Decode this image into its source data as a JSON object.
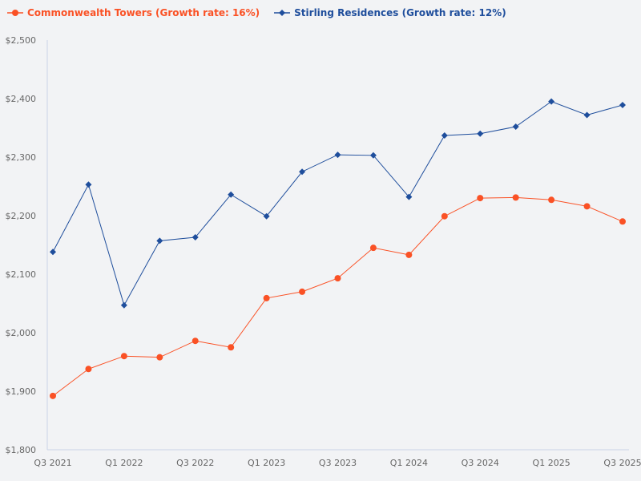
{
  "legend": {
    "items": [
      {
        "label": "Commonwealth Towers (Growth rate: 16%)",
        "color": "#fa5125",
        "marker": "circle"
      },
      {
        "label": "Stirling Residences (Growth rate: 12%)",
        "color": "#1f4e9c",
        "marker": "diamond"
      }
    ]
  },
  "chart_data": {
    "type": "line",
    "title": "",
    "xlabel": "",
    "ylabel": "",
    "categories": [
      "Q3 2021",
      "Q4 2021",
      "Q1 2022",
      "Q2 2022",
      "Q3 2022",
      "Q4 2022",
      "Q1 2023",
      "Q2 2023",
      "Q3 2023",
      "Q4 2023",
      "Q1 2024",
      "Q2 2024",
      "Q3 2024",
      "Q4 2024",
      "Q1 2025",
      "Q2 2025",
      "Q3 2025"
    ],
    "x_tick_labels": [
      "Q3 2021",
      "Q1 2022",
      "Q3 2022",
      "Q1 2023",
      "Q3 2023",
      "Q1 2024",
      "Q3 2024",
      "Q1 2025",
      "Q3 2025"
    ],
    "y_tick_labels": [
      "$1,800",
      "$1,900",
      "$2,000",
      "$2,100",
      "$2,200",
      "$2,300",
      "$2,400",
      "$2,500"
    ],
    "ylim": [
      1800,
      2500
    ],
    "grid": false,
    "legend_position": "top-left",
    "series": [
      {
        "name": "Commonwealth Towers (Growth rate: 16%)",
        "color": "#fa5125",
        "marker": "circle",
        "values": [
          1892,
          1938,
          1960,
          1958,
          1986,
          1975,
          2059,
          2070,
          2093,
          2145,
          2133,
          2199,
          2230,
          2231,
          2227,
          2216,
          2190
        ]
      },
      {
        "name": "Stirling Residences (Growth rate: 12%)",
        "color": "#1f4e9c",
        "marker": "diamond",
        "values": [
          2138,
          2253,
          2047,
          2157,
          2163,
          2236,
          2199,
          2275,
          2304,
          2303,
          2232,
          2337,
          2340,
          2352,
          2395,
          2372,
          2389
        ]
      }
    ]
  }
}
